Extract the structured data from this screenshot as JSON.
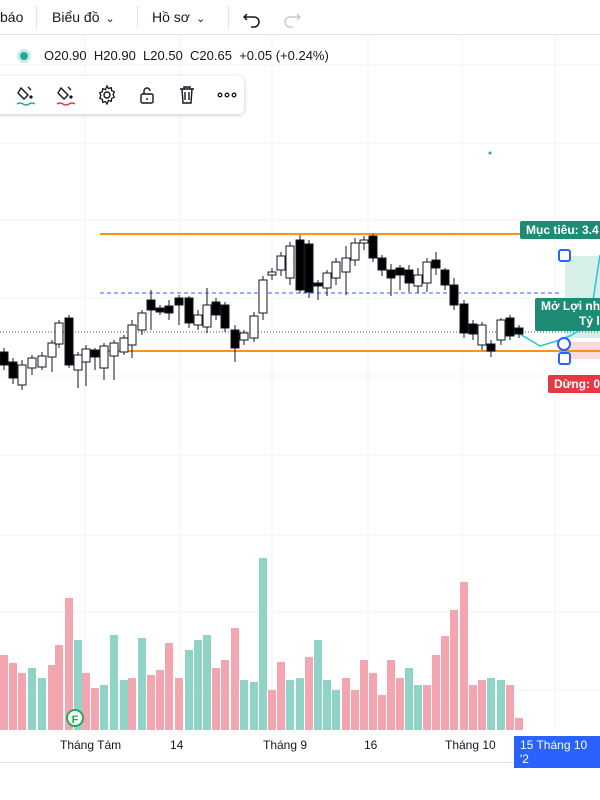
{
  "toolbar": {
    "partial_label": "báo",
    "chart_menu": "Biểu đồ",
    "profile_menu": "Hồ sơ",
    "undo_icon": "undo-icon",
    "redo_icon": "redo-icon"
  },
  "ohlc": {
    "open": "O20.90",
    "high": "H20.90",
    "low": "L20.50",
    "close": "C20.65",
    "change": "+0.05 (+0.24%)"
  },
  "floating_toolbar": {
    "icons": [
      "paint-bucket-icon",
      "text-color-icon",
      "gear-icon",
      "unlock-icon",
      "trash-icon",
      "more-icon"
    ]
  },
  "position_tool": {
    "target_label": "Mục tiêu: 3.4",
    "open_pnl_label": "Mở Lợi nh",
    "ratio_label": "Tỷ lệ",
    "stop_label": "Dừng: 0"
  },
  "x_axis": {
    "labels": [
      "Tháng Tám",
      "14",
      "Tháng 9",
      "16",
      "Tháng 10"
    ],
    "highlight": "15 Tháng 10 '2"
  },
  "event_marker": "F",
  "colors": {
    "up": "#22ab94",
    "down": "#000000",
    "vol_up": "#8fd4c6",
    "vol_down": "#f4a6b0",
    "orange_line": "#f7941d",
    "dashed_blue": "#2962ff",
    "target_green": "#1e8c74",
    "stop_red": "#e53946"
  }
}
